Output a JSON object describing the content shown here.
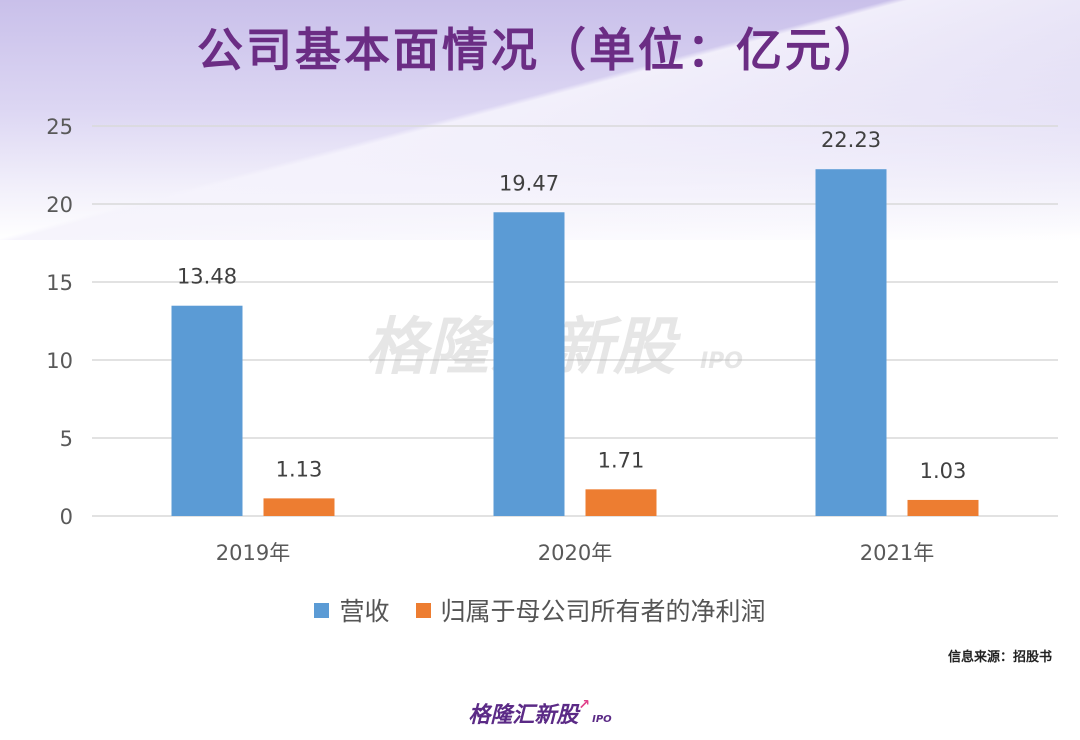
{
  "title": "公司基本面情况（单位：亿元）",
  "watermark": {
    "text": "格隆汇新股",
    "suffix": "IPO"
  },
  "source": "信息来源：招股书",
  "logo": {
    "text": "格隆汇新股",
    "suffix": "IPO"
  },
  "colors": {
    "revenue": "#5b9bd5",
    "net_profit": "#ed7d31",
    "title": "#6b2d84",
    "grid": "#d9d9d9"
  },
  "chart_data": {
    "type": "bar",
    "title": "公司基本面情况（单位：亿元）",
    "categories": [
      "2019年",
      "2020年",
      "2021年"
    ],
    "series": [
      {
        "name": "营收",
        "values": [
          13.48,
          19.47,
          22.23
        ]
      },
      {
        "name": "归属于母公司所有者的净利润",
        "values": [
          1.13,
          1.71,
          1.03
        ]
      }
    ],
    "ylim": [
      0,
      25
    ],
    "yticks": [
      0,
      5,
      10,
      15,
      20,
      25
    ],
    "grid": true,
    "legend": "bottom",
    "data_labels": true
  }
}
